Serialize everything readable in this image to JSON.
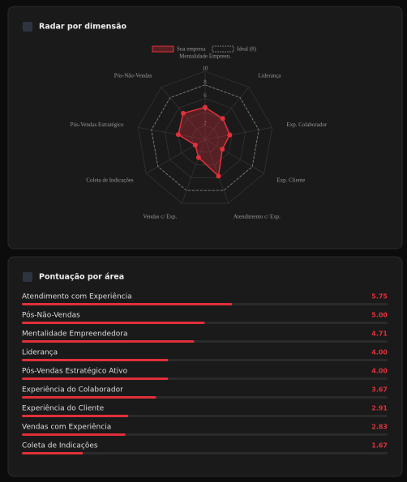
{
  "chart_data": [
    {
      "type": "radar",
      "title": "Radar por dimensão",
      "categories": [
        "Mentalidade Empreen.",
        "Liderança",
        "Exp. Colaborador",
        "Exp. Cliente",
        "Atendimento c/ Exp.",
        "Vendas c/ Exp.",
        "Coleta de Indicações",
        "Pós-Vendas Estratégico",
        "Pós-Não-Vendas"
      ],
      "series": [
        {
          "name": "Sua empresa",
          "color": "#e0303a",
          "values": [
            4.71,
            4.0,
            3.67,
            2.91,
            5.75,
            2.83,
            1.67,
            4.0,
            5.0
          ]
        },
        {
          "name": "Ideal (8)",
          "color": "#777777",
          "dashed": true,
          "values": [
            8,
            8,
            8,
            8,
            8,
            8,
            8,
            8,
            8
          ]
        }
      ],
      "rlim": [
        0,
        10
      ],
      "rticks": [
        2,
        4,
        6,
        8,
        10
      ],
      "legend": "top"
    },
    {
      "type": "barh",
      "title": "Pontuação por área",
      "categories": [
        "Atendimento com Experiência",
        "Pós-Não-Vendas",
        "Mentalidade Empreendedora",
        "Liderança",
        "Pós-Vendas Estratégico Ativo",
        "Experiência do Colaborador",
        "Experiência do Cliente",
        "Vendas com Experiência",
        "Coleta de Indicações"
      ],
      "values": [
        5.75,
        5.0,
        4.71,
        4.0,
        4.0,
        3.67,
        2.91,
        2.83,
        1.67
      ],
      "value_labels": [
        "5.75",
        "5.00",
        "4.71",
        "4.00",
        "4.00",
        "3.67",
        "2.91",
        "2.83",
        "1.67"
      ],
      "color": "#e0303a",
      "xlim": [
        0,
        10
      ]
    }
  ]
}
